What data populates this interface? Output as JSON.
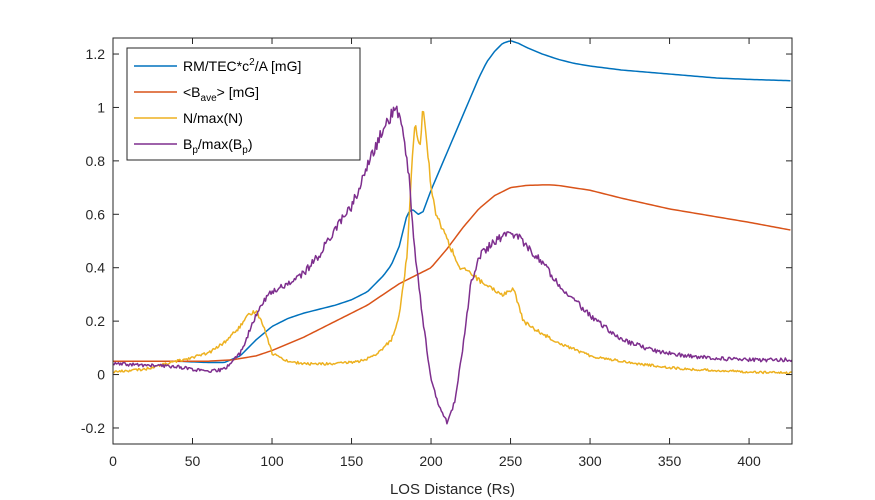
{
  "chart_data": {
    "type": "line",
    "title": "",
    "xlabel": "LOS Distance (Rs)",
    "ylabel": "",
    "xlim": [
      0,
      427
    ],
    "ylim": [
      -0.26,
      1.26
    ],
    "xticks": [
      0,
      50,
      100,
      150,
      200,
      250,
      300,
      350,
      400
    ],
    "xtick_labels": [
      "0",
      "50",
      "100",
      "150",
      "200",
      "250",
      "300",
      "350",
      "400"
    ],
    "yticks": [
      -0.2,
      0,
      0.2,
      0.4,
      0.6,
      0.8,
      1,
      1.2
    ],
    "ytick_labels": [
      "-0.2",
      "0",
      "0.2",
      "0.4",
      "0.6",
      "0.8",
      "1",
      "1.2"
    ],
    "legend_position": "top-left",
    "series": [
      {
        "name": "RM/TEC*c^2/A [mG]",
        "legend": {
          "base": "RM/TEC*c",
          "sup": "2",
          "rest": "/A [mG]"
        },
        "color": "#0072BD",
        "x": [
          0,
          40,
          60,
          70,
          80,
          90,
          100,
          110,
          120,
          130,
          140,
          150,
          160,
          170,
          175,
          180,
          185,
          188,
          192,
          195,
          200,
          205,
          210,
          215,
          220,
          225,
          230,
          235,
          240,
          245,
          250,
          255,
          260,
          270,
          280,
          290,
          300,
          320,
          340,
          360,
          380,
          400,
          427
        ],
        "y": [
          0.05,
          0.05,
          0.045,
          0.045,
          0.07,
          0.13,
          0.18,
          0.21,
          0.23,
          0.245,
          0.26,
          0.28,
          0.31,
          0.37,
          0.41,
          0.48,
          0.6,
          0.62,
          0.6,
          0.61,
          0.69,
          0.76,
          0.83,
          0.9,
          0.97,
          1.04,
          1.11,
          1.17,
          1.21,
          1.24,
          1.25,
          1.24,
          1.225,
          1.2,
          1.18,
          1.165,
          1.155,
          1.14,
          1.13,
          1.12,
          1.11,
          1.105,
          1.1
        ]
      },
      {
        "name": "<B_ave> [mG]",
        "legend": {
          "base": "<B",
          "sub": "ave",
          "rest": "> [mG]"
        },
        "color": "#D95319",
        "x": [
          0,
          40,
          60,
          75,
          90,
          100,
          120,
          140,
          160,
          180,
          190,
          200,
          210,
          220,
          230,
          240,
          250,
          260,
          270,
          275,
          280,
          300,
          320,
          350,
          380,
          400,
          427
        ],
        "y": [
          0.05,
          0.05,
          0.05,
          0.055,
          0.07,
          0.09,
          0.14,
          0.2,
          0.26,
          0.34,
          0.37,
          0.4,
          0.47,
          0.55,
          0.62,
          0.67,
          0.7,
          0.708,
          0.71,
          0.71,
          0.708,
          0.69,
          0.66,
          0.62,
          0.59,
          0.57,
          0.54
        ]
      },
      {
        "name": "N/max(N)",
        "legend": {
          "base": "N/max(N)"
        },
        "color": "#EDB120",
        "x": [
          0,
          20,
          40,
          60,
          70,
          80,
          85,
          90,
          95,
          100,
          110,
          120,
          140,
          155,
          165,
          175,
          180,
          185,
          188,
          190,
          193,
          195,
          197,
          200,
          203,
          207,
          212,
          218,
          225,
          235,
          245,
          252,
          258,
          265,
          280,
          300,
          330,
          360,
          400,
          427
        ],
        "y": [
          0.01,
          0.02,
          0.05,
          0.08,
          0.12,
          0.18,
          0.22,
          0.24,
          0.18,
          0.08,
          0.05,
          0.04,
          0.04,
          0.05,
          0.07,
          0.13,
          0.22,
          0.45,
          0.8,
          0.95,
          0.85,
          1.0,
          0.9,
          0.7,
          0.6,
          0.55,
          0.48,
          0.4,
          0.38,
          0.33,
          0.3,
          0.32,
          0.2,
          0.17,
          0.12,
          0.07,
          0.04,
          0.02,
          0.01,
          0.005
        ]
      },
      {
        "name": "B_p/max(B_p)",
        "legend": {
          "base": "B",
          "sub": "p",
          "rest": "/max(B",
          "sub2": "p",
          "rest2": ")"
        },
        "color": "#7E2F8E",
        "x": [
          0,
          40,
          60,
          70,
          80,
          90,
          95,
          100,
          110,
          120,
          130,
          140,
          150,
          155,
          160,
          165,
          170,
          175,
          178,
          182,
          186,
          190,
          195,
          200,
          205,
          210,
          215,
          220,
          225,
          230,
          240,
          250,
          255,
          260,
          270,
          280,
          300,
          320,
          340,
          360,
          380,
          400,
          427
        ],
        "y": [
          0.04,
          0.03,
          0.01,
          0.02,
          0.08,
          0.22,
          0.28,
          0.31,
          0.34,
          0.38,
          0.45,
          0.55,
          0.63,
          0.7,
          0.78,
          0.85,
          0.92,
          0.97,
          0.99,
          0.94,
          0.75,
          0.45,
          0.2,
          -0.02,
          -0.12,
          -0.18,
          -0.1,
          0.1,
          0.34,
          0.44,
          0.5,
          0.53,
          0.52,
          0.48,
          0.42,
          0.34,
          0.22,
          0.13,
          0.09,
          0.07,
          0.06,
          0.055,
          0.055
        ]
      }
    ]
  }
}
